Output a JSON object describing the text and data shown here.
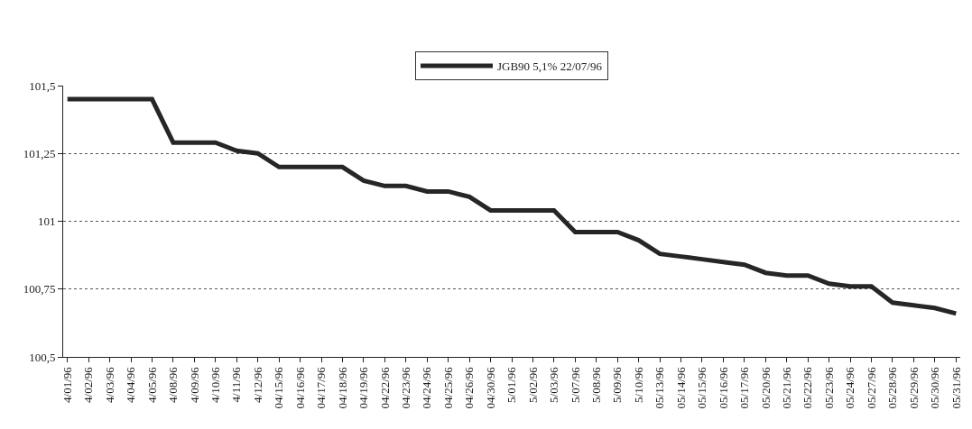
{
  "chart_data": {
    "type": "line",
    "categories": [
      "4/01/96",
      "4/02/96",
      "4/03/96",
      "4/04/96",
      "4/05/96",
      "4/08/96",
      "4/09/96",
      "4/10/96",
      "4/11/96",
      "4/12/96",
      "04/15/96",
      "04/16/96",
      "04/17/96",
      "04/18/96",
      "04/19/96",
      "04/22/96",
      "04/23/96",
      "04/24/96",
      "04/25/96",
      "04/26/96",
      "04/30/96",
      "5/01/96",
      "5/02/96",
      "5/03/96",
      "5/07/96",
      "5/08/96",
      "5/09/96",
      "5/10/96",
      "05/13/96",
      "05/14/96",
      "05/15/96",
      "05/16/96",
      "05/17/96",
      "05/20/96",
      "05/21/96",
      "05/22/96",
      "05/23/96",
      "05/24/96",
      "05/27/96",
      "05/28/96",
      "05/29/96",
      "05/30/96",
      "05/31/96"
    ],
    "series": [
      {
        "name": "JGB90 5,1% 22/07/96",
        "color": "#262626",
        "values": [
          101.45,
          101.45,
          101.45,
          101.45,
          101.45,
          101.29,
          101.29,
          101.29,
          101.26,
          101.25,
          101.2,
          101.2,
          101.2,
          101.2,
          101.15,
          101.13,
          101.13,
          101.11,
          101.11,
          101.09,
          101.04,
          101.04,
          101.04,
          101.04,
          100.96,
          100.96,
          100.96,
          100.93,
          100.88,
          100.87,
          100.86,
          100.85,
          100.84,
          100.81,
          100.8,
          100.8,
          100.77,
          100.76,
          100.76,
          100.7,
          100.69,
          100.68,
          100.66
        ]
      }
    ],
    "ylim": [
      100.5,
      101.5
    ],
    "yticks": [
      {
        "value": 100.5,
        "label": "100,5"
      },
      {
        "value": 100.75,
        "label": "100,75"
      },
      {
        "value": 101,
        "label": "101"
      },
      {
        "value": 101.25,
        "label": "101,25"
      },
      {
        "value": 101.5,
        "label": "101,5"
      }
    ],
    "grid": "y",
    "legend": "top",
    "marker": "none",
    "line_style": "solid"
  }
}
